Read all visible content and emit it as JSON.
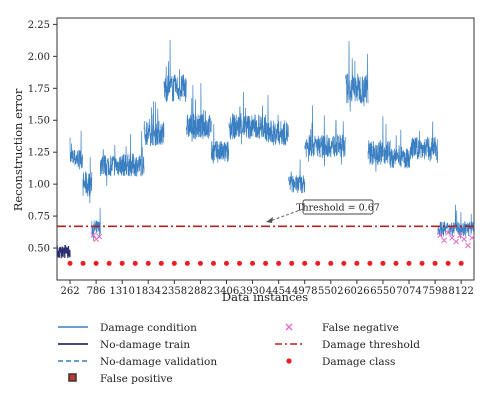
{
  "chart_data": {
    "type": "line",
    "xlabel": "Data instances",
    "ylabel": "Reconstruction error",
    "xlim": [
      0,
      8380
    ],
    "ylim": [
      0.25,
      2.3
    ],
    "x_ticks": [
      262,
      786,
      1310,
      1834,
      2358,
      2882,
      3406,
      3930,
      4454,
      4978,
      5502,
      6026,
      6550,
      7074,
      7598,
      8122
    ],
    "y_ticks": [
      0.5,
      0.75,
      1.0,
      1.25,
      1.5,
      1.75,
      2.0,
      2.25
    ],
    "y_tick_labels": [
      "0.50",
      "0.75",
      "1.00",
      "1.25",
      "1.50",
      "1.75",
      "2.00",
      "2.25"
    ],
    "grid": false,
    "legend_position": "bottom",
    "threshold": {
      "value": 0.67,
      "label": "Threshold = 0.67"
    },
    "series": [
      {
        "name": "Damage condition",
        "color": "#3a7fc1",
        "segments": [
          {
            "x_start": 262,
            "x_end": 520,
            "level": 1.2,
            "noise": 0.08
          },
          {
            "x_start": 520,
            "x_end": 700,
            "level": 1.0,
            "noise": 0.1
          },
          {
            "x_start": 700,
            "x_end": 870,
            "level": 0.65,
            "noise": 0.07
          },
          {
            "x_start": 870,
            "x_end": 1340,
            "level": 1.15,
            "noise": 0.09
          },
          {
            "x_start": 1340,
            "x_end": 1750,
            "level": 1.15,
            "noise": 0.09
          },
          {
            "x_start": 1750,
            "x_end": 2150,
            "level": 1.4,
            "noise": 0.1
          },
          {
            "x_start": 2150,
            "x_end": 2600,
            "level": 1.75,
            "noise": 0.11
          },
          {
            "x_start": 2600,
            "x_end": 3100,
            "level": 1.45,
            "noise": 0.1
          },
          {
            "x_start": 3100,
            "x_end": 3450,
            "level": 1.25,
            "noise": 0.09
          },
          {
            "x_start": 3450,
            "x_end": 4200,
            "level": 1.45,
            "noise": 0.1
          },
          {
            "x_start": 4200,
            "x_end": 4650,
            "level": 1.4,
            "noise": 0.1
          },
          {
            "x_start": 4650,
            "x_end": 4980,
            "level": 1.0,
            "noise": 0.07
          },
          {
            "x_start": 4980,
            "x_end": 5300,
            "level": 1.3,
            "noise": 0.09
          },
          {
            "x_start": 5300,
            "x_end": 5800,
            "level": 1.3,
            "noise": 0.09
          },
          {
            "x_start": 5800,
            "x_end": 6250,
            "level": 1.75,
            "noise": 0.12
          },
          {
            "x_start": 6250,
            "x_end": 6700,
            "level": 1.25,
            "noise": 0.1
          },
          {
            "x_start": 6700,
            "x_end": 7100,
            "level": 1.2,
            "noise": 0.08
          },
          {
            "x_start": 7100,
            "x_end": 7650,
            "level": 1.28,
            "noise": 0.09
          },
          {
            "x_start": 7650,
            "x_end": 8380,
            "level": 0.65,
            "noise": 0.06
          }
        ]
      },
      {
        "name": "No-damage train",
        "color": "#2b2f6e",
        "x_range": [
          0,
          262
        ],
        "level": 0.47,
        "noise": 0.05
      },
      {
        "name": "No-damage validation",
        "color": "#3a7fc1",
        "style": "dashed"
      },
      {
        "name": "False positive",
        "color": "#c0392b",
        "marker": "square"
      },
      {
        "name": "False negative",
        "color": "#e46ac8",
        "marker": "x",
        "approx_x": [
          730,
          790,
          850,
          7700,
          7780,
          7860,
          7940,
          8020,
          8100,
          8180,
          8260,
          8340
        ],
        "approx_y": [
          0.6,
          0.57,
          0.59,
          0.6,
          0.56,
          0.62,
          0.58,
          0.55,
          0.6,
          0.57,
          0.52,
          0.58
        ]
      },
      {
        "name": "Damage threshold",
        "color": "#b22222",
        "style": "dash-dot",
        "value": 0.67
      },
      {
        "name": "Damage class",
        "color": "#ee1c24",
        "marker": "dot",
        "value": 0.38
      }
    ]
  }
}
